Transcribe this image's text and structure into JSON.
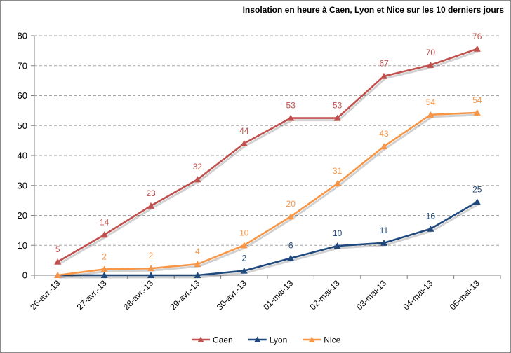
{
  "chart_data": {
    "type": "line",
    "title": "Insolation  en heure à Caen, Lyon et Nice sur les 10 derniers jours",
    "xlabel": "",
    "ylabel": "",
    "ylim": [
      0,
      80
    ],
    "yticks": [
      0,
      10,
      20,
      30,
      40,
      50,
      60,
      70,
      80
    ],
    "grid": true,
    "legend_position": "bottom",
    "categories": [
      "26-avr.-13",
      "27-avr.-13",
      "28-avr.-13",
      "29-avr.-13",
      "30-avr.-13",
      "01-mai-13",
      "02-mai-13",
      "03-mai-13",
      "04-mai-13",
      "05-mai-13"
    ],
    "series": [
      {
        "name": "Caen",
        "color": "#c0504d",
        "values": [
          4.5,
          13.5,
          23.2,
          32.0,
          44.0,
          52.5,
          52.5,
          66.5,
          70.2,
          75.6
        ],
        "labels": [
          "5",
          "14",
          "23",
          "32",
          "44",
          "53",
          "53",
          "67",
          "70",
          "76"
        ]
      },
      {
        "name": "Lyon",
        "color": "#1f497d",
        "values": [
          0,
          0,
          0,
          0,
          1.5,
          5.7,
          9.8,
          10.8,
          15.5,
          24.5
        ],
        "labels": [
          "",
          "",
          "",
          "",
          "2",
          "6",
          "10",
          "11",
          "16",
          "25"
        ]
      },
      {
        "name": "Nice",
        "color": "#f79646",
        "values": [
          0,
          2.0,
          2.3,
          3.7,
          10.0,
          19.6,
          30.6,
          43.0,
          53.6,
          54.3
        ],
        "labels": [
          "",
          "2",
          "2",
          "4",
          "10",
          "20",
          "31",
          "43",
          "54",
          "54"
        ]
      }
    ]
  }
}
